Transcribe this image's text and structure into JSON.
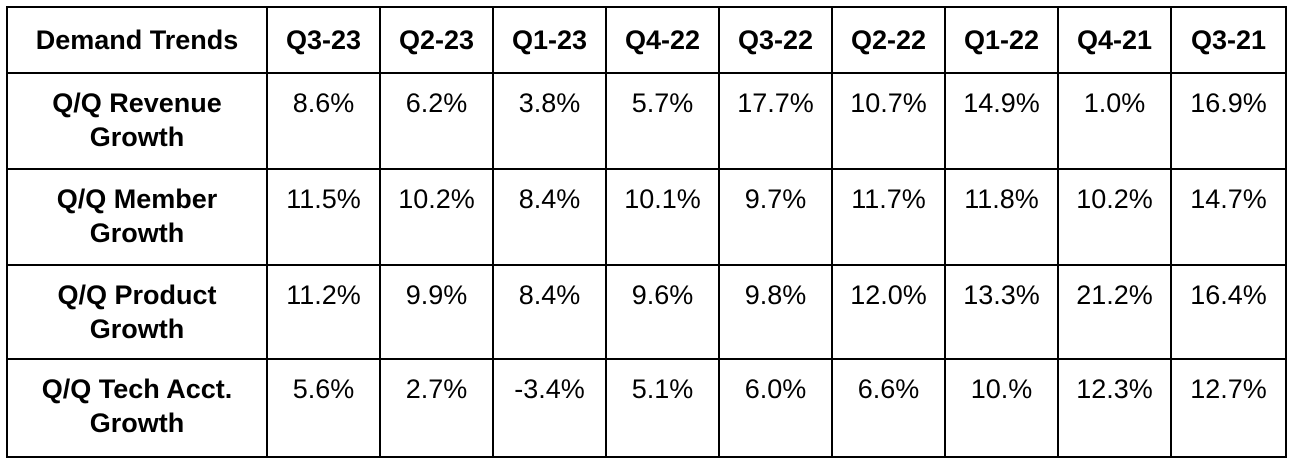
{
  "table": {
    "corner_label": "Demand Trends",
    "columns": [
      "Q3-23",
      "Q2-23",
      "Q1-23",
      "Q4-22",
      "Q3-22",
      "Q2-22",
      "Q1-22",
      "Q4-21",
      "Q3-21"
    ],
    "rows": [
      {
        "label": "Q/Q Revenue Growth",
        "values": [
          "8.6%",
          "6.2%",
          "3.8%",
          "5.7%",
          "17.7%",
          "10.7%",
          "14.9%",
          "1.0%",
          "16.9%"
        ]
      },
      {
        "label": "Q/Q Member Growth",
        "values": [
          "11.5%",
          "10.2%",
          "8.4%",
          "10.1%",
          "9.7%",
          "11.7%",
          "11.8%",
          "10.2%",
          "14.7%"
        ]
      },
      {
        "label": "Q/Q Product Growth",
        "values": [
          "11.2%",
          "9.9%",
          "8.4%",
          "9.6%",
          "9.8%",
          "12.0%",
          "13.3%",
          "21.2%",
          "16.4%"
        ]
      },
      {
        "label": "Q/Q Tech Acct. Growth",
        "values": [
          "5.6%",
          "2.7%",
          "-3.4%",
          "5.1%",
          "6.0%",
          "6.6%",
          "10.%",
          "12.3%",
          "12.7%"
        ]
      }
    ]
  }
}
